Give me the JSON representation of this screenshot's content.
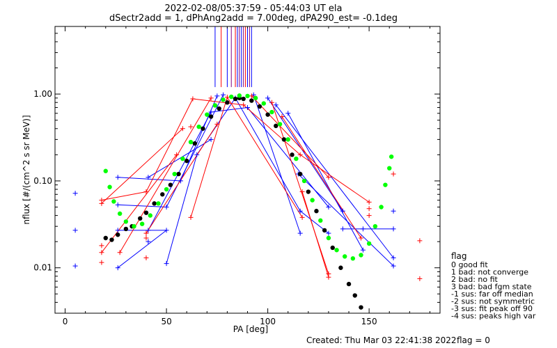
{
  "chart_data": {
    "type": "scatter",
    "title_line1": "2022-02-08/05:37:59 - 05:44:03 UT ela",
    "title_line2": "dSectr2add = 1, dPhAng2add = 7.00deg, dPA290_est=  -0.1deg",
    "xlabel": "PA [deg]",
    "ylabel": "nflux [#/(cm^2 s sr MeV)]",
    "x_scale": "linear",
    "y_scale": "log",
    "xlim": [
      -5,
      185
    ],
    "ylim": [
      0.003,
      6
    ],
    "x_ticks": [
      0,
      50,
      100,
      150
    ],
    "y_ticks": [
      {
        "value": 0.01,
        "label": "0.01"
      },
      {
        "value": 0.1,
        "label": "0.10"
      },
      {
        "value": 1.0,
        "label": "1.00"
      }
    ],
    "legend": {
      "placement": "right",
      "title": "flag",
      "entries": [
        " 0 good fit",
        " 1 bad: not converge",
        " 2 bad: no fit",
        " 3 bad: bad fgm state",
        "-1 sus: far off median",
        "-2 sus: not symmetric",
        "-3 sus: fit peak off 90",
        "-4 sus: peaks high var"
      ]
    },
    "footer": "Created: Thu Mar 03 22:41:38 2022",
    "flag_text": "flag = 0",
    "series": [
      {
        "color": "#0000ff",
        "style": "plus_markers",
        "points": [
          [
            5,
            0.072
          ],
          [
            5,
            0.027
          ],
          [
            5,
            0.0105
          ],
          [
            26,
            0.11
          ],
          [
            26,
            0.053
          ],
          [
            26,
            0.027
          ],
          [
            26,
            0.01
          ],
          [
            41,
            0.11
          ],
          [
            41,
            0.027
          ],
          [
            41,
            0.02
          ],
          [
            50,
            0.05
          ],
          [
            50,
            0.027
          ],
          [
            50,
            0.0112
          ],
          [
            57,
            0.1
          ],
          [
            65,
            0.2
          ],
          [
            72,
            0.62
          ],
          [
            72,
            0.3
          ],
          [
            75,
            0.95
          ],
          [
            78,
            0.98
          ],
          [
            84,
            0.9
          ],
          [
            90,
            0.7
          ],
          [
            93,
            0.98
          ],
          [
            100,
            0.9
          ],
          [
            104,
            0.75
          ],
          [
            110,
            0.6
          ],
          [
            115,
            0.12
          ],
          [
            116,
            0.045
          ],
          [
            116,
            0.025
          ],
          [
            130,
            0.05
          ],
          [
            130,
            0.025
          ],
          [
            137,
            0.045
          ],
          [
            137,
            0.028
          ],
          [
            147,
            0.028
          ],
          [
            147,
            0.016
          ],
          [
            162,
            0.045
          ],
          [
            162,
            0.028
          ],
          [
            162,
            0.013
          ],
          [
            162,
            0.0105
          ]
        ]
      },
      {
        "color": "#ff0000",
        "style": "plus_markers",
        "points": [
          [
            18,
            0.06
          ],
          [
            18,
            0.055
          ],
          [
            18,
            0.018
          ],
          [
            18,
            0.015
          ],
          [
            18,
            0.0115
          ],
          [
            27,
            0.015
          ],
          [
            40,
            0.075
          ],
          [
            40,
            0.025
          ],
          [
            40,
            0.022
          ],
          [
            40,
            0.013
          ],
          [
            55,
            0.2
          ],
          [
            58,
            0.4
          ],
          [
            62,
            0.038
          ],
          [
            62,
            0.42
          ],
          [
            63,
            0.88
          ],
          [
            72,
            0.9
          ],
          [
            75,
            0.45
          ],
          [
            80,
            0.92
          ],
          [
            88,
            0.75
          ],
          [
            92,
            0.95
          ],
          [
            102,
            0.8
          ],
          [
            107,
            0.55
          ],
          [
            116,
            0.2
          ],
          [
            117,
            0.075
          ],
          [
            117,
            0.038
          ],
          [
            130,
            0.11
          ],
          [
            130,
            0.0085
          ],
          [
            130,
            0.0078
          ],
          [
            146,
            0.022
          ],
          [
            150,
            0.057
          ],
          [
            150,
            0.048
          ],
          [
            150,
            0.04
          ],
          [
            162,
            0.12
          ],
          [
            175,
            0.0205
          ],
          [
            175,
            0.0075
          ]
        ]
      },
      {
        "color": "#000000",
        "style": "dots",
        "points": [
          [
            20,
            0.022
          ],
          [
            23,
            0.021
          ],
          [
            26,
            0.024
          ],
          [
            30,
            0.028
          ],
          [
            33,
            0.03
          ],
          [
            37,
            0.037
          ],
          [
            40,
            0.043
          ],
          [
            44,
            0.055
          ],
          [
            48,
            0.07
          ],
          [
            52,
            0.09
          ],
          [
            56,
            0.12
          ],
          [
            60,
            0.17
          ],
          [
            64,
            0.27
          ],
          [
            68,
            0.4
          ],
          [
            72,
            0.55
          ],
          [
            76,
            0.68
          ],
          [
            80,
            0.8
          ],
          [
            84,
            0.88
          ],
          [
            86,
            0.9
          ],
          [
            88,
            0.88
          ],
          [
            92,
            0.84
          ],
          [
            96,
            0.72
          ],
          [
            100,
            0.58
          ],
          [
            104,
            0.43
          ],
          [
            108,
            0.3
          ],
          [
            112,
            0.2
          ],
          [
            116,
            0.12
          ],
          [
            120,
            0.075
          ],
          [
            124,
            0.045
          ],
          [
            128,
            0.027
          ],
          [
            132,
            0.017
          ],
          [
            136,
            0.01
          ],
          [
            140,
            0.0065
          ],
          [
            143,
            0.0048
          ],
          [
            146,
            0.0035
          ]
        ]
      },
      {
        "color": "#00ff00",
        "style": "dots",
        "points": [
          [
            20,
            0.13
          ],
          [
            22,
            0.085
          ],
          [
            24,
            0.058
          ],
          [
            27,
            0.042
          ],
          [
            30,
            0.034
          ],
          [
            34,
            0.03
          ],
          [
            38,
            0.032
          ],
          [
            42,
            0.04
          ],
          [
            46,
            0.055
          ],
          [
            50,
            0.08
          ],
          [
            54,
            0.12
          ],
          [
            58,
            0.18
          ],
          [
            62,
            0.28
          ],
          [
            66,
            0.42
          ],
          [
            70,
            0.58
          ],
          [
            74,
            0.74
          ],
          [
            78,
            0.86
          ],
          [
            82,
            0.93
          ],
          [
            86,
            0.96
          ],
          [
            90,
            0.95
          ],
          [
            94,
            0.9
          ],
          [
            98,
            0.78
          ],
          [
            102,
            0.62
          ],
          [
            106,
            0.45
          ],
          [
            110,
            0.3
          ],
          [
            114,
            0.18
          ],
          [
            118,
            0.1
          ],
          [
            122,
            0.06
          ],
          [
            126,
            0.035
          ],
          [
            130,
            0.022
          ],
          [
            134,
            0.016
          ],
          [
            138,
            0.0135
          ],
          [
            142,
            0.0128
          ],
          [
            146,
            0.014
          ],
          [
            150,
            0.019
          ],
          [
            153,
            0.03
          ],
          [
            156,
            0.05
          ],
          [
            158,
            0.09
          ],
          [
            160,
            0.14
          ],
          [
            161,
            0.19
          ]
        ]
      }
    ]
  }
}
